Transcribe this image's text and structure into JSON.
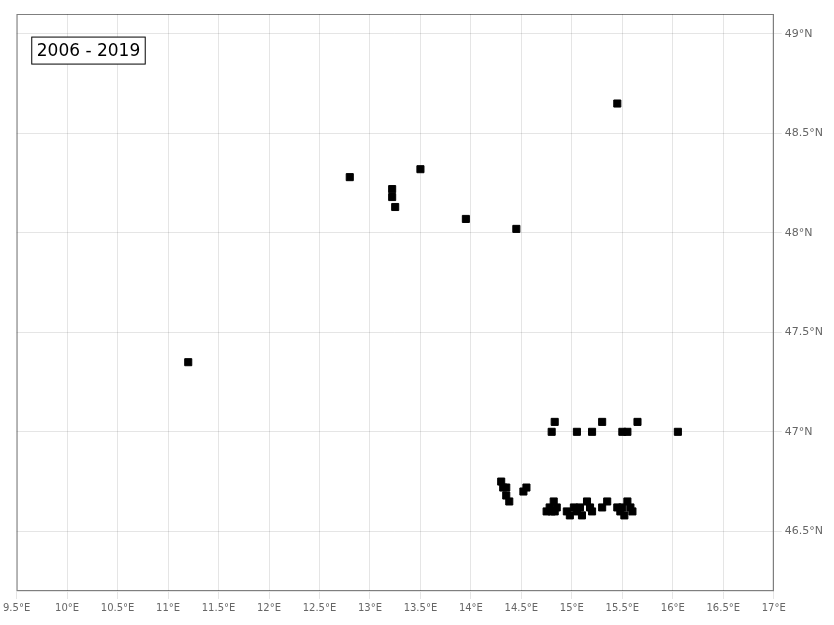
{
  "chart_data": {
    "type": "scatter",
    "annotation": "2006 - 2019",
    "x": [
      11.2,
      12.8,
      13.22,
      13.22,
      13.25,
      13.5,
      13.95,
      14.45,
      15.45,
      14.8,
      14.83,
      14.3,
      14.32,
      14.35,
      14.38,
      14.35,
      14.52,
      14.55,
      14.75,
      14.78,
      14.8,
      14.83,
      14.82,
      14.85,
      14.95,
      14.98,
      15.02,
      15.05,
      15.08,
      15.1,
      15.15,
      15.18,
      15.2,
      15.3,
      15.35,
      15.05,
      15.2,
      15.3,
      15.5,
      15.55,
      15.65,
      16.05,
      15.45,
      15.48,
      15.5,
      15.52,
      15.55,
      15.58,
      15.6
    ],
    "values": [
      47.35,
      48.28,
      48.22,
      48.18,
      48.13,
      48.32,
      48.07,
      48.02,
      48.65,
      47.0,
      47.05,
      46.75,
      46.72,
      46.68,
      46.65,
      46.72,
      46.7,
      46.72,
      46.6,
      46.62,
      46.6,
      46.6,
      46.65,
      46.62,
      46.6,
      46.58,
      46.62,
      46.6,
      46.62,
      46.58,
      46.65,
      46.62,
      46.6,
      46.62,
      46.65,
      47.0,
      47.0,
      47.05,
      47.0,
      47.0,
      47.05,
      47.0,
      46.62,
      46.6,
      46.62,
      46.58,
      46.65,
      46.62,
      46.6
    ],
    "color": "#000000",
    "marker": "square",
    "xlim": [
      9.5,
      17.0
    ],
    "ylim": [
      46.2,
      49.1
    ],
    "xticks": [
      {
        "value": 9.5,
        "label": "9.5°E"
      },
      {
        "value": 10.0,
        "label": "10°E"
      },
      {
        "value": 10.5,
        "label": "10.5°E"
      },
      {
        "value": 11.0,
        "label": "11°E"
      },
      {
        "value": 11.5,
        "label": "11.5°E"
      },
      {
        "value": 12.0,
        "label": "12°E"
      },
      {
        "value": 12.5,
        "label": "12.5°E"
      },
      {
        "value": 13.0,
        "label": "13°E"
      },
      {
        "value": 13.5,
        "label": "13.5°E"
      },
      {
        "value": 14.0,
        "label": "14°E"
      },
      {
        "value": 14.5,
        "label": "14.5°E"
      },
      {
        "value": 15.0,
        "label": "15°E"
      },
      {
        "value": 15.5,
        "label": "15.5°E"
      },
      {
        "value": 16.0,
        "label": "16°E"
      },
      {
        "value": 16.5,
        "label": "16.5°E"
      },
      {
        "value": 17.0,
        "label": "17°E"
      }
    ],
    "yticks": [
      {
        "value": 46.5,
        "label": "46.5°N"
      },
      {
        "value": 47.0,
        "label": "47°N"
      },
      {
        "value": 47.5,
        "label": "47.5°N"
      },
      {
        "value": 48.0,
        "label": "48°N"
      },
      {
        "value": 48.5,
        "label": "48.5°N"
      },
      {
        "value": 49.0,
        "label": "49°N"
      }
    ],
    "grid": true
  }
}
